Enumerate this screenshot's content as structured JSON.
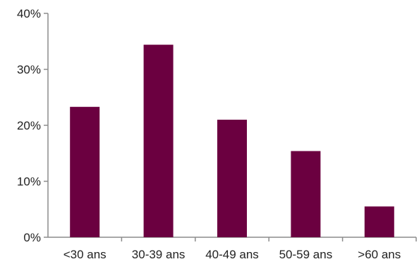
{
  "chart_data": {
    "type": "bar",
    "title": "",
    "xlabel": "",
    "ylabel": "",
    "categories": [
      "<30 ans",
      "30-39 ans",
      "40-49 ans",
      "50-59 ans",
      ">60 ans"
    ],
    "values": [
      23.3,
      34.4,
      21.0,
      15.4,
      5.5
    ],
    "ylim": [
      0,
      40
    ],
    "yticks": [
      0,
      10,
      20,
      30,
      40
    ],
    "ytick_labels": [
      "0%",
      "10%",
      "20%",
      "30%",
      "40%"
    ],
    "grid": false,
    "legend": "none",
    "bar_color": "#6b0040",
    "axis_color": "#8c8c8c"
  }
}
